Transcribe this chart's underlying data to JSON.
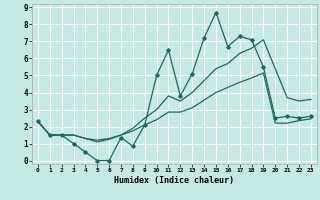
{
  "xlabel": "Humidex (Indice chaleur)",
  "bg_color": "#c5eae4",
  "grid_color": "#ffffff",
  "line_color": "#1a6b5a",
  "xlim": [
    -0.5,
    23.5
  ],
  "ylim": [
    -0.2,
    9.2
  ],
  "xticks": [
    0,
    1,
    2,
    3,
    4,
    5,
    6,
    7,
    8,
    9,
    10,
    11,
    12,
    13,
    14,
    15,
    16,
    17,
    18,
    19,
    20,
    21,
    22,
    23
  ],
  "yticks": [
    0,
    1,
    2,
    3,
    4,
    5,
    6,
    7,
    8,
    9
  ],
  "x": [
    0,
    1,
    2,
    3,
    4,
    5,
    6,
    7,
    8,
    9,
    10,
    11,
    12,
    13,
    14,
    15,
    16,
    17,
    18,
    19,
    20,
    21,
    22,
    23
  ],
  "line_top": [
    2.3,
    1.5,
    1.5,
    1.0,
    0.5,
    0.0,
    0.0,
    1.35,
    0.85,
    2.1,
    5.0,
    6.5,
    3.8,
    5.1,
    7.2,
    8.7,
    6.7,
    7.3,
    7.1,
    5.5,
    2.5,
    2.6,
    2.5,
    2.6
  ],
  "line_mid": [
    2.3,
    1.5,
    1.5,
    1.5,
    1.3,
    1.1,
    1.25,
    1.5,
    1.9,
    2.5,
    3.0,
    3.8,
    3.5,
    4.0,
    4.7,
    5.4,
    5.7,
    6.3,
    6.6,
    7.1,
    5.4,
    3.7,
    3.5,
    3.6
  ],
  "line_bot": [
    2.3,
    1.5,
    1.5,
    1.5,
    1.3,
    1.2,
    1.3,
    1.5,
    1.75,
    2.1,
    2.4,
    2.85,
    2.85,
    3.1,
    3.55,
    4.0,
    4.3,
    4.6,
    4.85,
    5.15,
    2.2,
    2.2,
    2.35,
    2.45
  ]
}
